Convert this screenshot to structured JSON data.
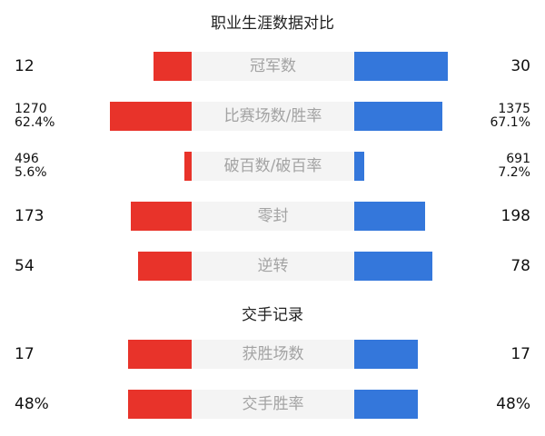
{
  "career_title": "职业生涯数据对比",
  "h2h_title": "交手记录",
  "colors": {
    "left": "#e8332a",
    "right": "#3477db",
    "label_bg": "#f4f4f4"
  },
  "career_rows": [
    {
      "label": "冠军数",
      "left": [
        "12"
      ],
      "right": [
        "30"
      ],
      "left_bar": 0.38,
      "right_bar": 0.94
    },
    {
      "label": "比赛场数/胜率",
      "left": [
        "1270",
        "62.4%"
      ],
      "right": [
        "1375",
        "67.1%"
      ],
      "left_bar": 0.82,
      "right_bar": 0.88
    },
    {
      "label": "破百数/破百率",
      "left": [
        "496",
        "5.6%"
      ],
      "right": [
        "691",
        "7.2%"
      ],
      "left_bar": 0.07,
      "right_bar": 0.1
    },
    {
      "label": "零封",
      "left": [
        "173"
      ],
      "right": [
        "198"
      ],
      "left_bar": 0.61,
      "right_bar": 0.71
    },
    {
      "label": "逆转",
      "left": [
        "54"
      ],
      "right": [
        "78"
      ],
      "left_bar": 0.54,
      "right_bar": 0.78
    }
  ],
  "h2h_rows": [
    {
      "label": "获胜场数",
      "left": [
        "17"
      ],
      "right": [
        "17"
      ],
      "left_bar": 0.64,
      "right_bar": 0.64
    },
    {
      "label": "交手胜率",
      "left": [
        "48%"
      ],
      "right": [
        "48%"
      ],
      "left_bar": 0.64,
      "right_bar": 0.64
    }
  ]
}
